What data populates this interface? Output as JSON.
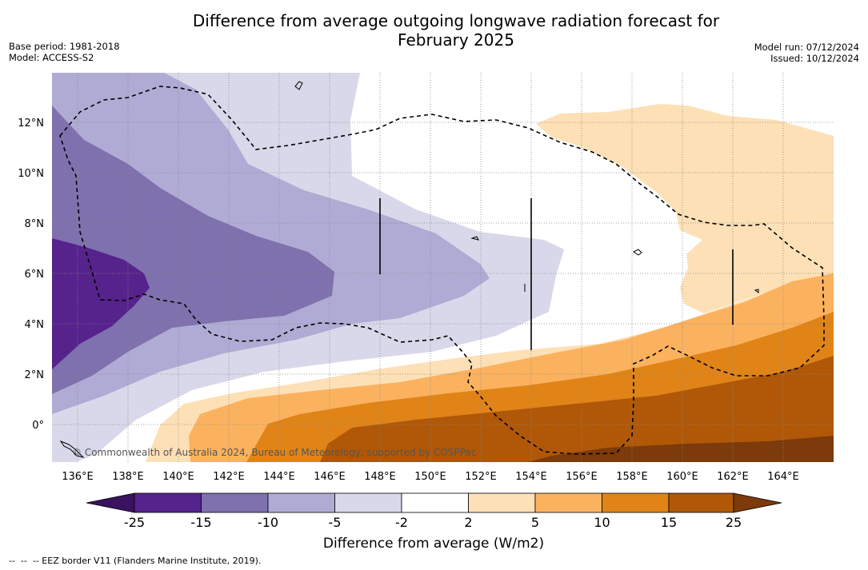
{
  "title_line1": "Difference from average outgoing longwave radiation forecast for",
  "title_line2": "February 2025",
  "base_period": "Base period: 1981-2018",
  "model": "Model: ACCESS-S2",
  "model_run": "Model run: 07/12/2024",
  "issued": "Issued: 10/12/2024",
  "copyright": "© Commonwealth of Australia 2024, Bureau of Meteorology, supported by COSPPac",
  "footer_legend": "--  --  -- EEZ border V11 (Flanders Marine Institute, 2019).",
  "map": {
    "lon_range": [
      135,
      166
    ],
    "lat_range": [
      -1.5,
      14
    ],
    "lon_ticks": [
      "136°E",
      "138°E",
      "140°E",
      "142°E",
      "144°E",
      "146°E",
      "148°E",
      "150°E",
      "152°E",
      "154°E",
      "156°E",
      "158°E",
      "160°E",
      "162°E",
      "164°E"
    ],
    "lat_ticks": [
      "12°N",
      "10°N",
      "8°N",
      "6°N",
      "4°N",
      "2°N",
      "0°"
    ]
  },
  "colorbar": {
    "title": "Difference from average (W/m2)",
    "labels": [
      "-25",
      "-15",
      "-10",
      "-5",
      "-2",
      "2",
      "5",
      "10",
      "15",
      "25"
    ],
    "colors": {
      "below": "#3a1260",
      "c1": "#56228c",
      "c2": "#7e71ae",
      "c3": "#b0abd4",
      "c4": "#d8d8ea",
      "c5": "#ffffff",
      "c6": "#fde0b6",
      "c7": "#fbb25f",
      "c8": "#e08418",
      "c9": "#b05808",
      "above": "#7d3a0a"
    }
  }
}
